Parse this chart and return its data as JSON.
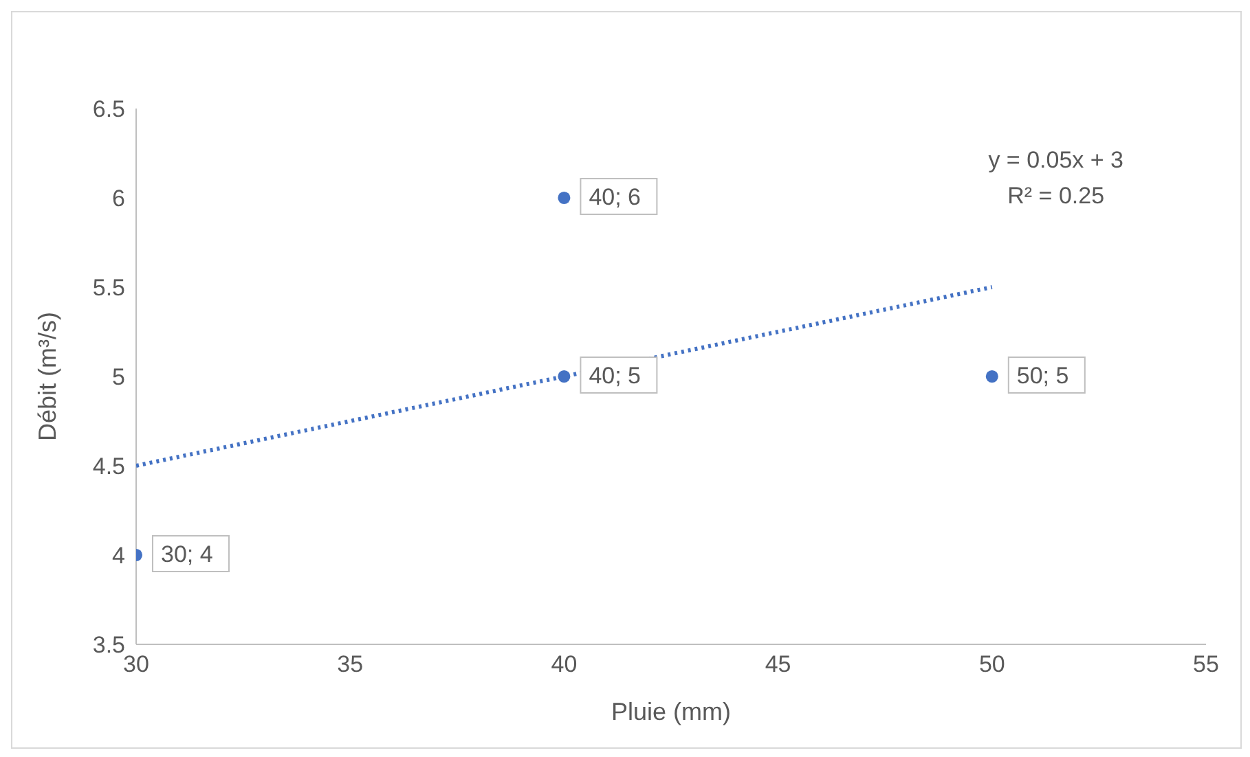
{
  "chart_data": {
    "type": "scatter",
    "xlabel": "Pluie (mm)",
    "ylabel": "Débit (m³/s)",
    "xlim": [
      30,
      55
    ],
    "xticks": [
      30,
      35,
      40,
      45,
      50,
      55
    ],
    "ylim": [
      3.5,
      6.5
    ],
    "yticks": [
      3.5,
      4,
      4.5,
      5,
      5.5,
      6,
      6.5
    ],
    "annotations": [
      "y = 0.05x + 3",
      "R² = 0.25"
    ],
    "series": [
      {
        "color": "#4472c4",
        "marker": "circle",
        "x": [
          40,
          40,
          30,
          50
        ],
        "values": [
          6,
          5,
          4,
          5
        ],
        "value_labels": [
          "40; 6",
          "40; 5",
          "30; 4",
          "50; 5"
        ]
      },
      {
        "type": "line",
        "color": "#4472c4",
        "marker": "none",
        "line_style": "dotted",
        "x": [
          30,
          50
        ],
        "values": [
          4.5,
          5.5
        ]
      }
    ]
  }
}
